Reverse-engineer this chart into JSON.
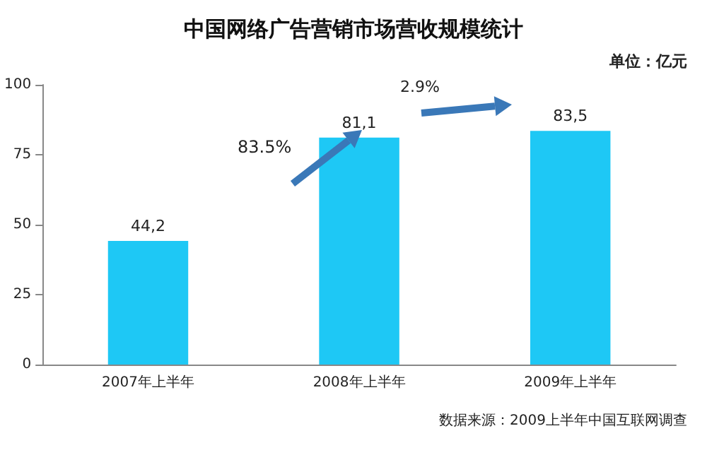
{
  "chart_data": {
    "type": "bar",
    "title": "中国网络广告营销市场营收规模统计",
    "categories": [
      "2007年上半年",
      "2008年上半年",
      "2009年上半年"
    ],
    "values": [
      44.2,
      81.1,
      83.5
    ],
    "color": "#1ec8f5",
    "value_labels": [
      "44,2",
      "81,1",
      "83,5"
    ],
    "ylim": [
      0,
      100
    ],
    "yticks": [
      0,
      25,
      50,
      75,
      100
    ],
    "grid": false,
    "annotations": [
      "单位：亿元",
      "83.5%",
      "2.9%",
      "数据来源：2009上半年中国互联网调查"
    ]
  }
}
